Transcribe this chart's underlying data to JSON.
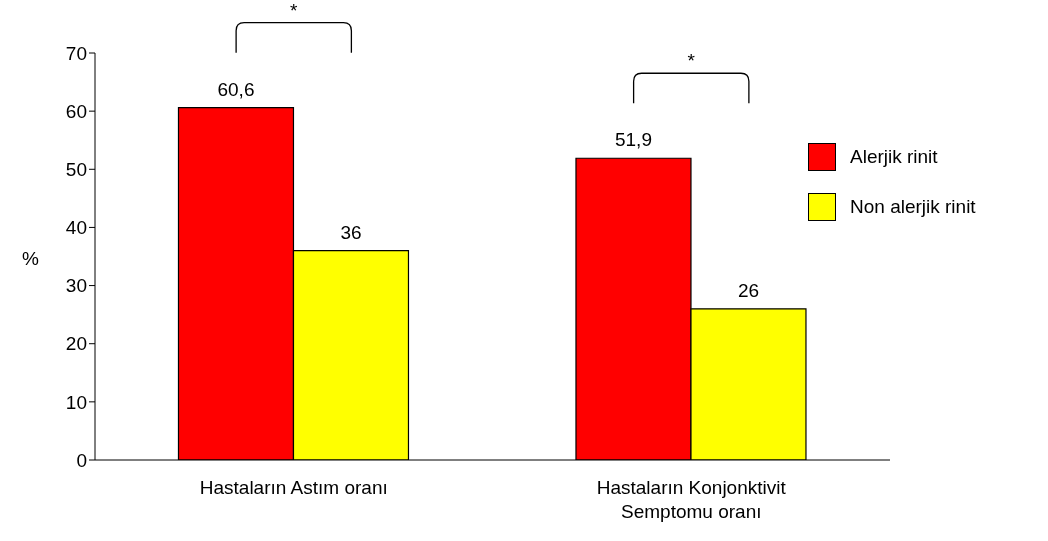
{
  "chart_data": {
    "type": "bar",
    "ylabel": "%",
    "categories": [
      "Hastaların Astım oranı",
      "Hastaların Konjonktivit Semptomu oranı"
    ],
    "series": [
      {
        "name": "Alerjik rinit",
        "color": "#ff0000",
        "values": [
          60.6,
          51.9
        ],
        "value_labels": [
          "60,6",
          "51,9"
        ]
      },
      {
        "name": "Non alerjik rinit",
        "color": "#ffff00",
        "values": [
          36,
          26
        ],
        "value_labels": [
          "36",
          "26"
        ]
      }
    ],
    "ylim": [
      0,
      70
    ],
    "yticks": [
      0,
      10,
      20,
      30,
      40,
      50,
      60,
      70
    ],
    "grid": false,
    "legend": "right",
    "annotations": [
      "*",
      "*"
    ]
  }
}
